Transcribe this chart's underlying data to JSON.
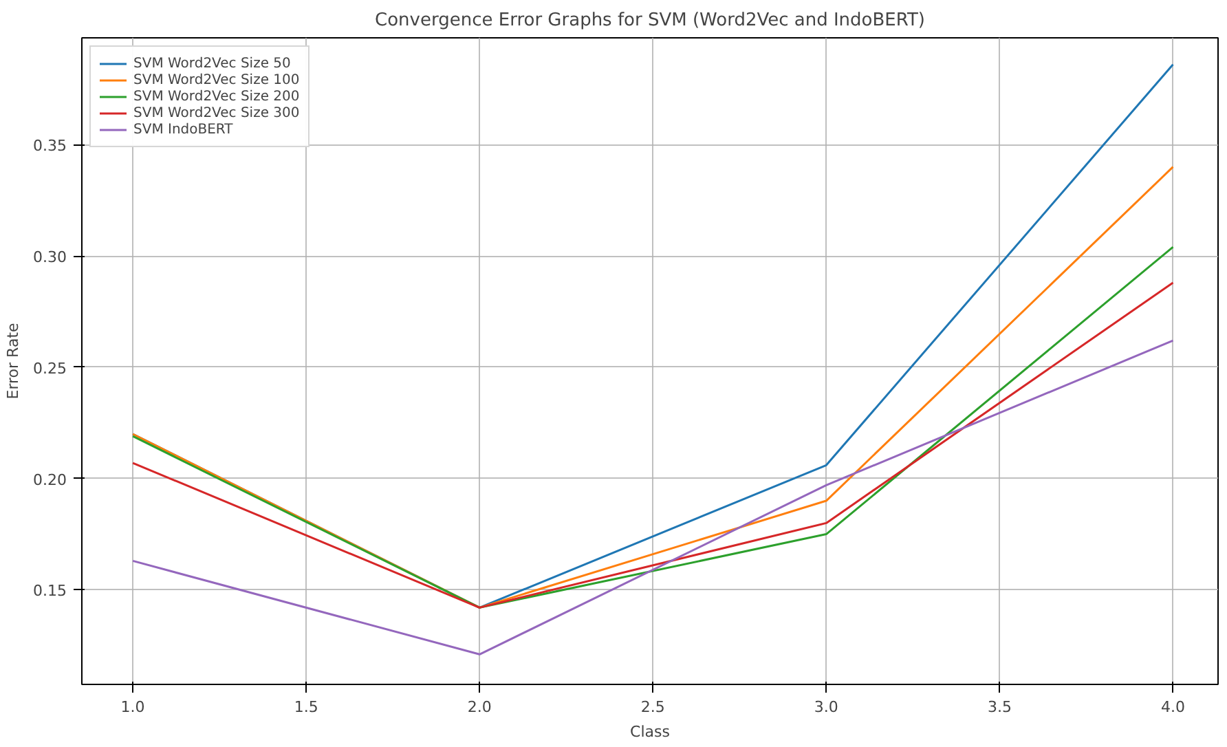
{
  "chart_data": {
    "type": "line",
    "title": "Convergence Error Graphs for SVM (Word2Vec and IndoBERT)",
    "xlabel": "Class",
    "ylabel": "Error Rate",
    "x": [
      1,
      2,
      3,
      4
    ],
    "series": [
      {
        "name": "SVM Word2Vec Size 50",
        "color": "#1f77b4",
        "values": [
          0.22,
          0.142,
          0.206,
          0.386
        ]
      },
      {
        "name": "SVM Word2Vec Size 100",
        "color": "#ff7f0e",
        "values": [
          0.22,
          0.142,
          0.19,
          0.34
        ]
      },
      {
        "name": "SVM Word2Vec Size 200",
        "color": "#2ca02c",
        "values": [
          0.219,
          0.142,
          0.175,
          0.304
        ]
      },
      {
        "name": "SVM Word2Vec Size 300",
        "color": "#d62728",
        "values": [
          0.207,
          0.142,
          0.18,
          0.288
        ]
      },
      {
        "name": "SVM IndoBERT",
        "color": "#9467bd",
        "values": [
          0.163,
          0.121,
          0.197,
          0.262
        ]
      }
    ],
    "xlim": [
      0.853,
      4.13
    ],
    "ylim": [
      0.1075,
      0.398
    ],
    "xticks": [
      {
        "value": 1,
        "label": "1.0"
      },
      {
        "value": 1.5,
        "label": "1.5"
      },
      {
        "value": 2,
        "label": "2.0"
      },
      {
        "value": 2.5,
        "label": "2.5"
      },
      {
        "value": 3,
        "label": "3.0"
      },
      {
        "value": 3.5,
        "label": "3.5"
      },
      {
        "value": 4,
        "label": "4.0"
      }
    ],
    "yticks": [
      {
        "value": 0.15,
        "label": "0.15"
      },
      {
        "value": 0.2,
        "label": "0.20"
      },
      {
        "value": 0.25,
        "label": "0.25"
      },
      {
        "value": 0.3,
        "label": "0.30"
      },
      {
        "value": 0.35,
        "label": "0.35"
      }
    ],
    "grid": true,
    "legend": "top left",
    "marker": "none",
    "line_style": "solid"
  }
}
